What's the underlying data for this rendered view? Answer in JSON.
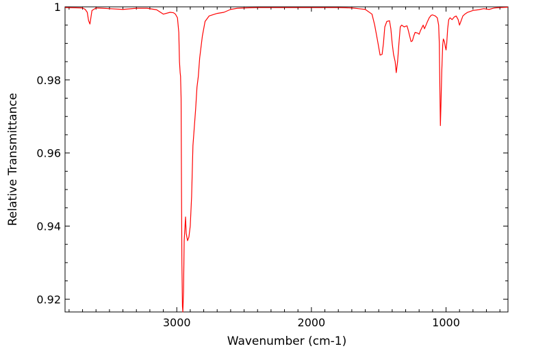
{
  "chart_data": {
    "type": "line",
    "title": "",
    "xlabel": "Wavenumber (cm-1)",
    "ylabel": "Relative Transmittance",
    "xlim": [
      3830,
      540
    ],
    "ylim": [
      0.9165,
      1.0
    ],
    "x_reversed": true,
    "grid": false,
    "legend": "none",
    "x_ticks": [
      {
        "value": 3000,
        "label": "3000"
      },
      {
        "value": 2000,
        "label": "2000"
      },
      {
        "value": 1000,
        "label": "1000"
      }
    ],
    "y_ticks": [
      {
        "value": 1.0,
        "label": "1"
      },
      {
        "value": 0.98,
        "label": "0.98"
      },
      {
        "value": 0.96,
        "label": "0.96"
      },
      {
        "value": 0.94,
        "label": "0.94"
      },
      {
        "value": 0.92,
        "label": "0.92"
      }
    ],
    "series": [
      {
        "color": "#ff0000",
        "x": [
          3830,
          3700,
          3680,
          3665,
          3655,
          3645,
          3630,
          3600,
          3550,
          3500,
          3400,
          3300,
          3220,
          3150,
          3100,
          3050,
          3025,
          3010,
          2995,
          2985,
          2980,
          2975,
          2972,
          2968,
          2965,
          2962,
          2958,
          2955,
          2950,
          2945,
          2935,
          2930,
          2920,
          2910,
          2900,
          2890,
          2880,
          2870,
          2860,
          2850,
          2840,
          2830,
          2810,
          2790,
          2760,
          2700,
          2650,
          2600,
          2550,
          2500,
          2400,
          2300,
          2200,
          2100,
          2000,
          1900,
          1800,
          1700,
          1650,
          1600,
          1550,
          1530,
          1510,
          1490,
          1475,
          1465,
          1455,
          1440,
          1420,
          1410,
          1400,
          1390,
          1378,
          1370,
          1360,
          1350,
          1340,
          1330,
          1310,
          1300,
          1290,
          1280,
          1270,
          1260,
          1250,
          1240,
          1230,
          1210,
          1200,
          1190,
          1170,
          1160,
          1140,
          1125,
          1110,
          1100,
          1080,
          1065,
          1055,
          1050,
          1046,
          1042,
          1038,
          1032,
          1025,
          1020,
          1012,
          1005,
          1000,
          995,
          988,
          980,
          970,
          955,
          940,
          925,
          910,
          900,
          890,
          875,
          860,
          840,
          800,
          760,
          720,
          680,
          640,
          600,
          540
        ],
        "y": [
          0.9998,
          0.9997,
          0.9993,
          0.9985,
          0.9962,
          0.9953,
          0.999,
          0.9997,
          0.9996,
          0.9995,
          0.9993,
          0.9996,
          0.9996,
          0.9992,
          0.998,
          0.9985,
          0.9984,
          0.998,
          0.997,
          0.993,
          0.985,
          0.982,
          0.981,
          0.975,
          0.95,
          0.93,
          0.918,
          0.9165,
          0.922,
          0.936,
          0.9425,
          0.938,
          0.936,
          0.937,
          0.94,
          0.948,
          0.962,
          0.967,
          0.972,
          0.978,
          0.981,
          0.986,
          0.992,
          0.996,
          0.9975,
          0.9982,
          0.9985,
          0.9993,
          0.9996,
          0.9997,
          0.9998,
          0.9998,
          0.9998,
          0.9998,
          0.9998,
          0.9998,
          0.9998,
          0.9997,
          0.9995,
          0.9993,
          0.998,
          0.995,
          0.991,
          0.9868,
          0.987,
          0.99,
          0.9945,
          0.996,
          0.9962,
          0.994,
          0.99,
          0.987,
          0.985,
          0.982,
          0.985,
          0.99,
          0.9945,
          0.995,
          0.9945,
          0.9947,
          0.9948,
          0.9935,
          0.992,
          0.9905,
          0.9907,
          0.992,
          0.993,
          0.9928,
          0.9925,
          0.9935,
          0.995,
          0.994,
          0.9958,
          0.997,
          0.9977,
          0.9978,
          0.9975,
          0.997,
          0.995,
          0.99,
          0.978,
          0.9675,
          0.973,
          0.982,
          0.9895,
          0.9912,
          0.9905,
          0.989,
          0.9882,
          0.99,
          0.994,
          0.9965,
          0.997,
          0.9965,
          0.9972,
          0.9975,
          0.9965,
          0.995,
          0.996,
          0.9975,
          0.998,
          0.9985,
          0.999,
          0.9992,
          0.9995,
          0.9993,
          0.9997,
          0.9998,
          0.9999
        ]
      }
    ]
  }
}
